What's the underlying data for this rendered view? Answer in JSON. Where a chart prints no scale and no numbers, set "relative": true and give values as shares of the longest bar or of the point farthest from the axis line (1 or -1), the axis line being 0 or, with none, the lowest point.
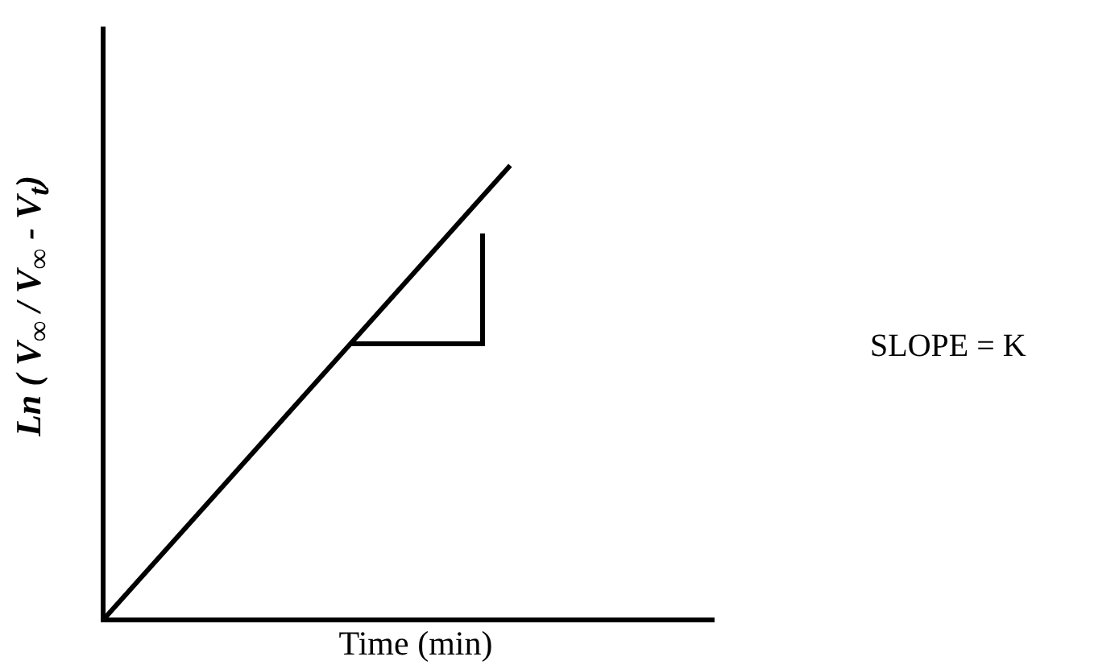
{
  "chart_data": {
    "type": "line",
    "relative": true,
    "xlabel": "Time (min)",
    "ylabel": "Ln ( V$_{∞}$ / V$_{∞}$ - V$_{t}$)",
    "categories": [
      null,
      null,
      null,
      null
    ],
    "values": [
      0,
      0.5,
      1,
      null
    ],
    "color": "#000000",
    "marker": "none",
    "grid": false,
    "tick_labels": false,
    "legend": false,
    "annotations": [
      "SLOPE = K"
    ]
  }
}
